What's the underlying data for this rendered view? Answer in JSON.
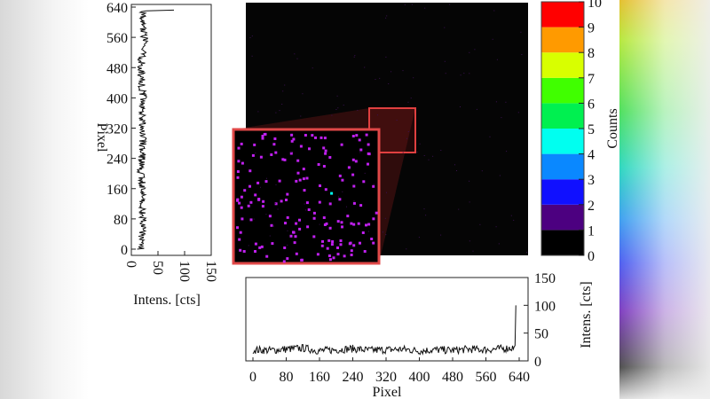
{
  "chart_data": [
    {
      "type": "line",
      "orientation": "vertical",
      "ylabel": "Pixel",
      "xlabel": "Intens. [cts]",
      "xlim": [
        0,
        150
      ],
      "ylim": [
        0,
        640
      ],
      "xticks": [
        "0",
        "50",
        "100",
        "150"
      ],
      "yticks": [
        "0",
        "80",
        "160",
        "240",
        "320",
        "400",
        "480",
        "560",
        "640"
      ],
      "pixel": [
        0,
        40,
        80,
        120,
        160,
        200,
        240,
        280,
        320,
        360,
        400,
        440,
        480,
        520,
        560,
        600,
        630,
        635
      ],
      "intensity": [
        18,
        20,
        22,
        19,
        21,
        18,
        20,
        22,
        19,
        20,
        23,
        19,
        18,
        21,
        24,
        20,
        22,
        80
      ]
    },
    {
      "type": "heatmap",
      "colorbar_label": "Counts",
      "colorbar_ticks": [
        "0",
        "1",
        "2",
        "3",
        "4",
        "5",
        "6",
        "7",
        "8",
        "9",
        "10"
      ],
      "colorbar_colors": [
        "#000000",
        "#4c0080",
        "#1010ff",
        "#0a88ff",
        "#00fff0",
        "#00f050",
        "#40ff00",
        "#d8ff00",
        "#ff9a00",
        "#ff0000"
      ],
      "dominant_value": 0,
      "sparse_values": [
        1,
        4,
        5
      ],
      "zoom_inset": true
    },
    {
      "type": "line",
      "xlabel": "Pixel",
      "ylabel": "Intens. [cts]",
      "xlim": [
        0,
        640
      ],
      "ylim": [
        0,
        150
      ],
      "xticks": [
        "0",
        "80",
        "160",
        "240",
        "320",
        "400",
        "480",
        "560",
        "640"
      ],
      "yticks": [
        "0",
        "50",
        "100",
        "150"
      ],
      "pixel": [
        0,
        40,
        80,
        120,
        160,
        200,
        240,
        280,
        320,
        360,
        400,
        440,
        480,
        520,
        560,
        600,
        630,
        635
      ],
      "intensity": [
        20,
        19,
        21,
        23,
        18,
        20,
        22,
        19,
        20,
        21,
        18,
        20,
        19,
        21,
        20,
        22,
        24,
        100
      ]
    }
  ]
}
